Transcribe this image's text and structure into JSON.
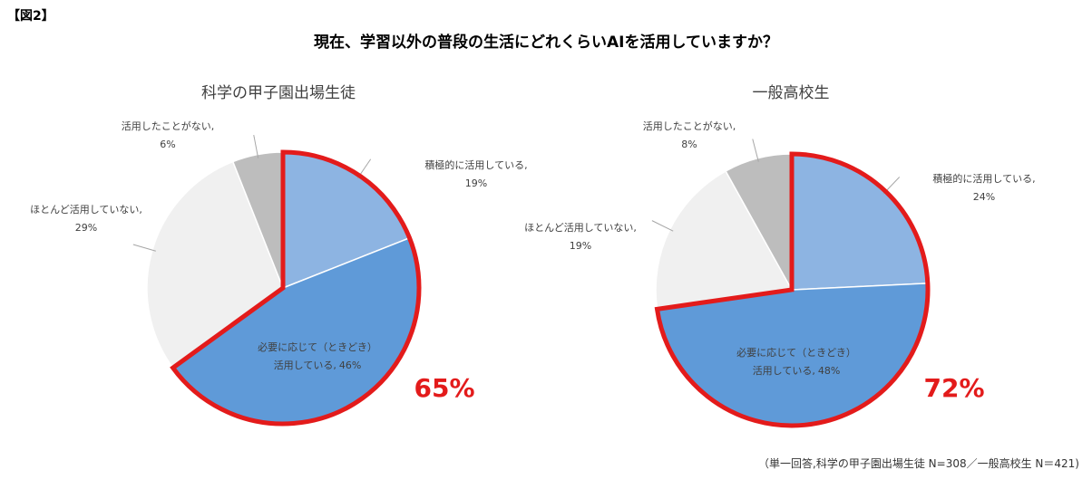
{
  "figure_label": "【図2】",
  "title": "現在、学習以外の普段の生活にどれくらいAIを活用していますか？",
  "note": "（単一回答,科学の甲子園出場生徒 N=308／一般高校生 N＝421)",
  "chart_data": [
    {
      "type": "pie",
      "title": "科学の甲子園出場生徒",
      "categories": [
        "積極的に活用している,",
        "必要に応じて（ときどき）活用している,",
        "ほとんど活用していない,",
        "活用したことがない,"
      ],
      "values": [
        19,
        46,
        29,
        6
      ],
      "value_labels": [
        "19%",
        "46%",
        "29%",
        "6%"
      ],
      "colors": [
        "#8db4e2",
        "#5f9ad8",
        "#f0f0f0",
        "#bdbdbd"
      ],
      "highlight": [
        0,
        1
      ],
      "highlight_color": "#e31b1b",
      "highlight_label": "65%"
    },
    {
      "type": "pie",
      "title": "一般高校生",
      "categories": [
        "積極的に活用している,",
        "必要に応じて（ときどき）活用している,",
        "ほとんど活用していない,",
        "活用したことがない,"
      ],
      "values": [
        24,
        48,
        19,
        8
      ],
      "value_labels": [
        "24%",
        "48%",
        "19%",
        "8%"
      ],
      "colors": [
        "#8db4e2",
        "#5f9ad8",
        "#f0f0f0",
        "#bdbdbd"
      ],
      "highlight": [
        0,
        1
      ],
      "highlight_color": "#e31b1b",
      "highlight_label": "72%"
    }
  ]
}
